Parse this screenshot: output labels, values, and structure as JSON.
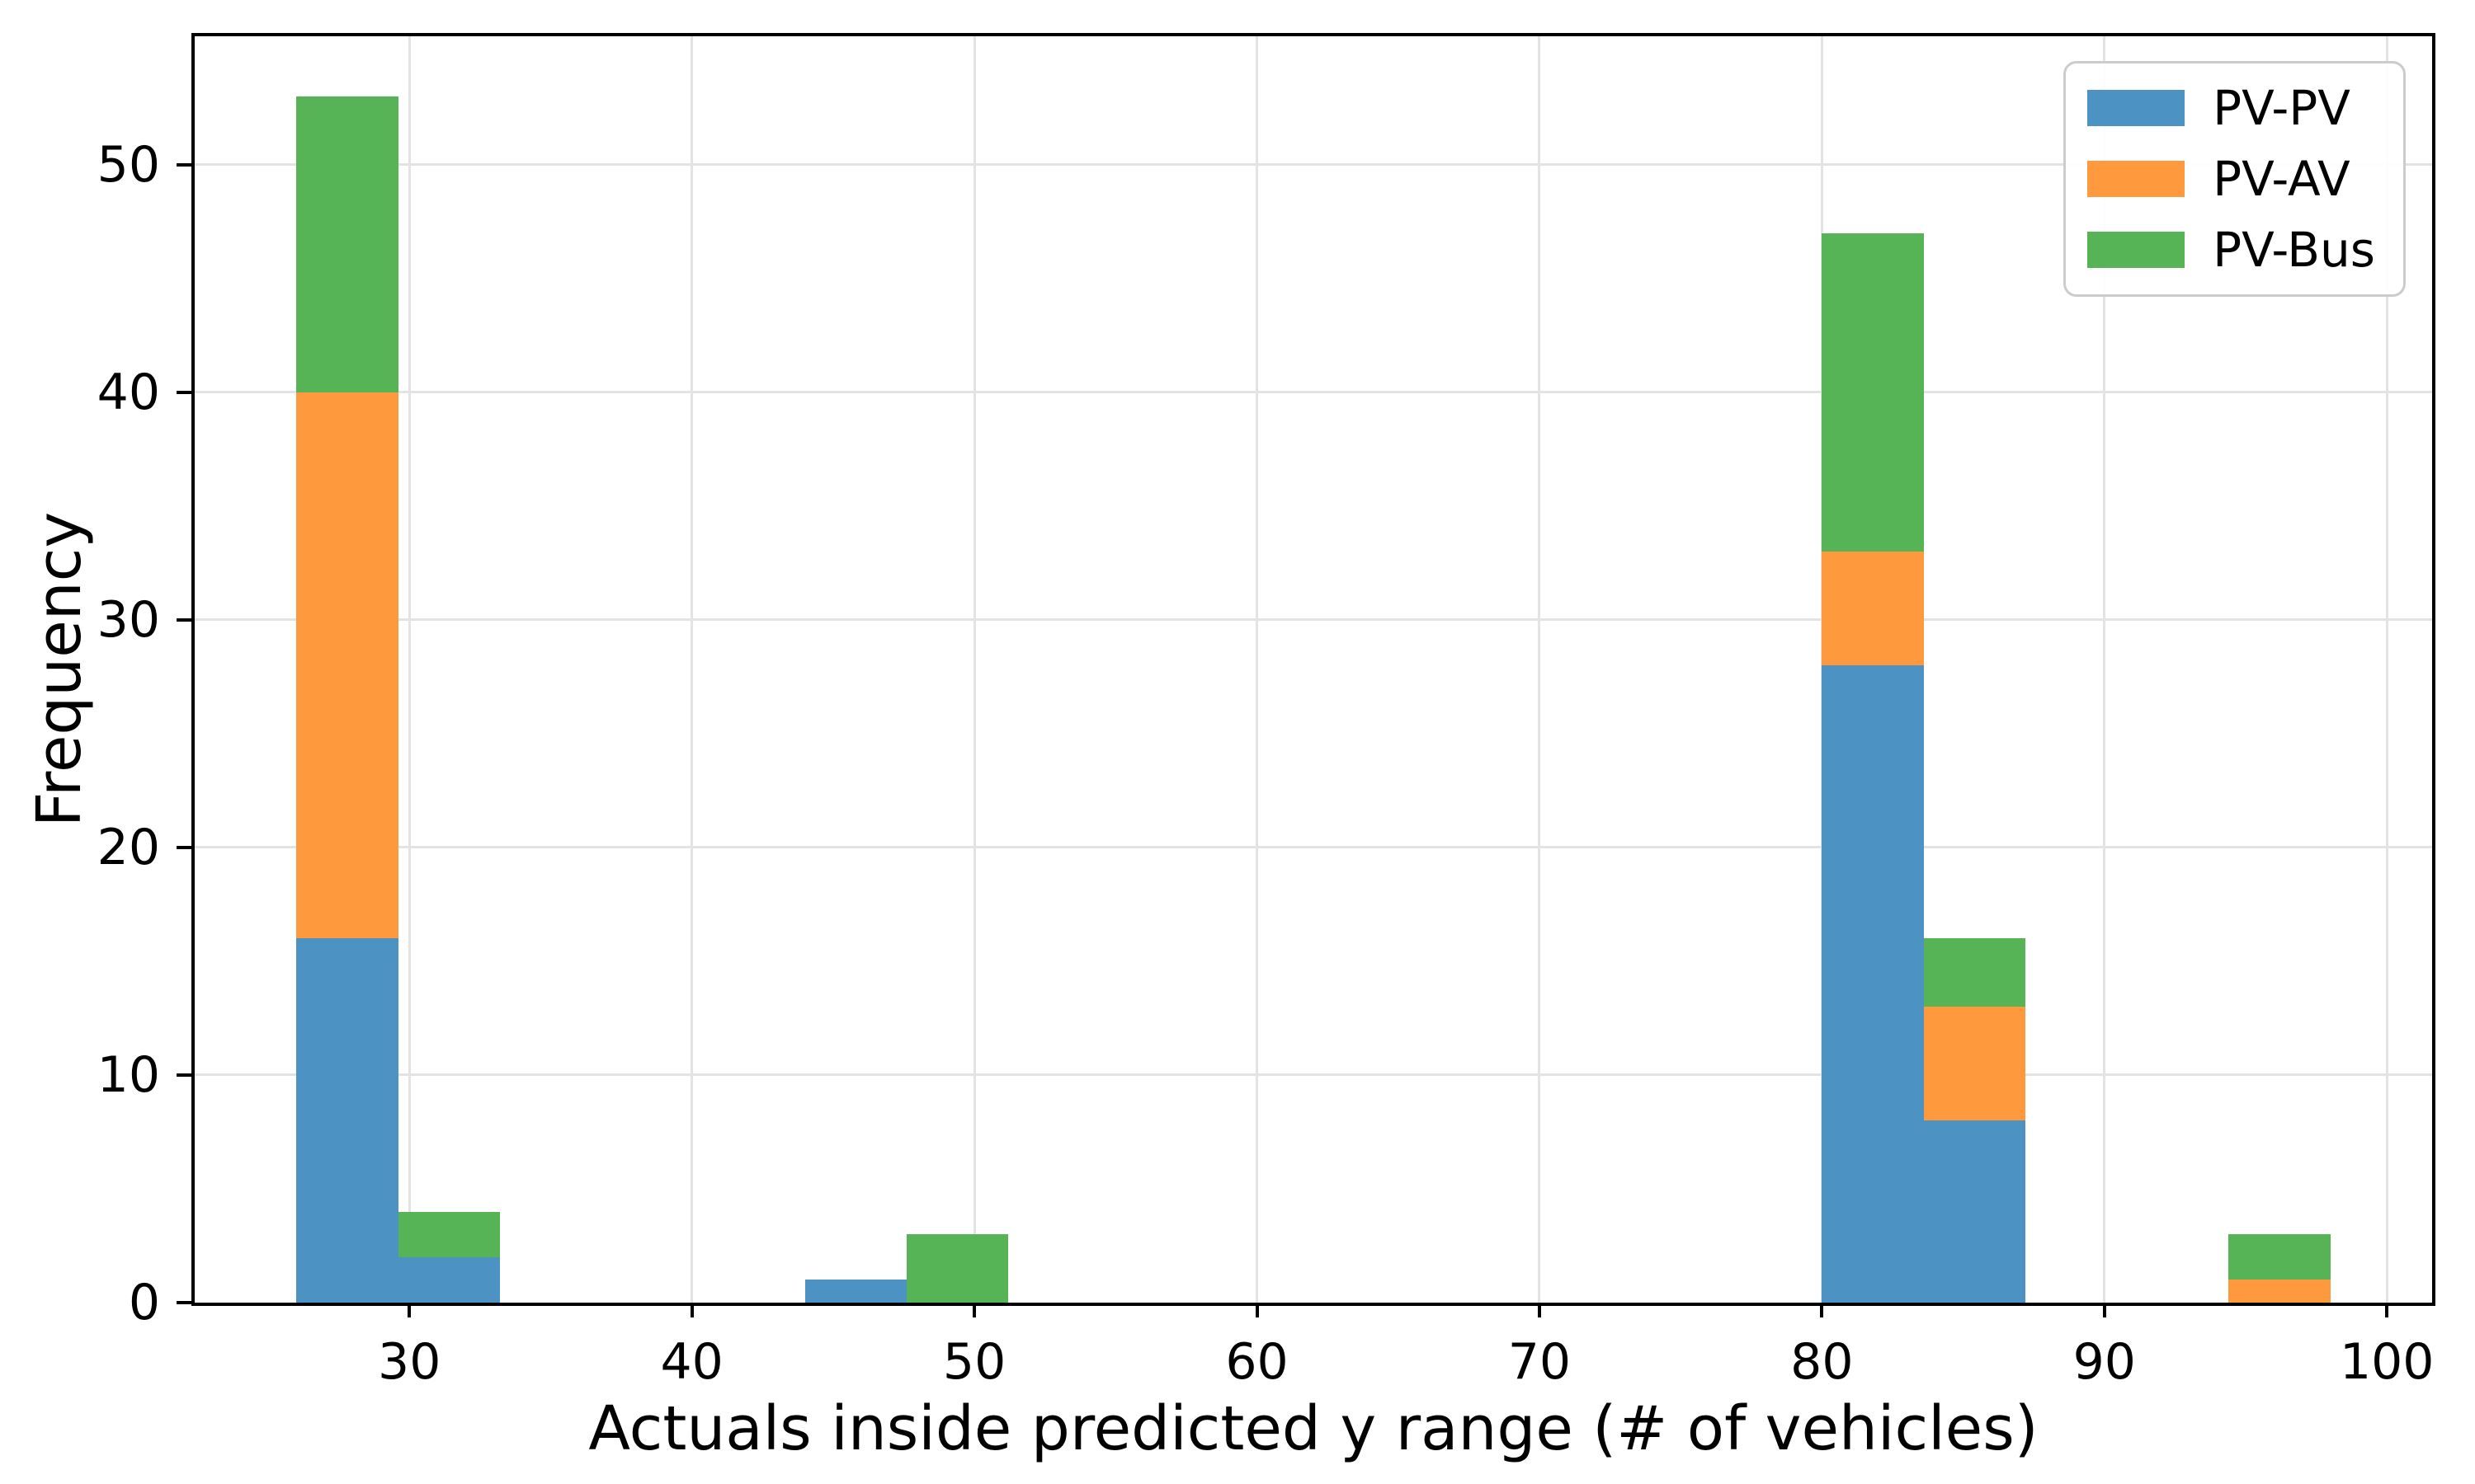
{
  "chart_data": {
    "type": "bar",
    "subtype": "stacked-histogram",
    "title": "",
    "xlabel": "Actuals inside predicted y range (# of vehicles)",
    "ylabel": "Frequency",
    "xlim": [
      22.4,
      101.6
    ],
    "ylim": [
      0,
      55.65
    ],
    "xticks": [
      30,
      40,
      50,
      60,
      70,
      80,
      90,
      100
    ],
    "yticks": [
      0,
      10,
      20,
      30,
      40,
      50
    ],
    "grid": true,
    "bin_width": 3.6,
    "series_order": [
      "PV-PV",
      "PV-AV",
      "PV-Bus"
    ],
    "series_colors": {
      "PV-PV": "#4C92C3",
      "PV-AV": "#FF993E",
      "PV-Bus": "#56B356"
    },
    "bins": [
      {
        "x0": 26.0,
        "x1": 29.6,
        "PV-PV": 16,
        "PV-AV": 24,
        "PV-Bus": 13
      },
      {
        "x0": 29.6,
        "x1": 33.2,
        "PV-PV": 2,
        "PV-AV": 0,
        "PV-Bus": 2
      },
      {
        "x0": 44.0,
        "x1": 47.6,
        "PV-PV": 1,
        "PV-AV": 0,
        "PV-Bus": 0
      },
      {
        "x0": 47.6,
        "x1": 51.2,
        "PV-PV": 0,
        "PV-AV": 0,
        "PV-Bus": 3
      },
      {
        "x0": 80.0,
        "x1": 83.6,
        "PV-PV": 28,
        "PV-AV": 5,
        "PV-Bus": 14
      },
      {
        "x0": 83.6,
        "x1": 87.2,
        "PV-PV": 8,
        "PV-AV": 5,
        "PV-Bus": 3
      },
      {
        "x0": 94.4,
        "x1": 98.0,
        "PV-PV": 0,
        "PV-AV": 1,
        "PV-Bus": 2
      }
    ],
    "legend": {
      "position": "top-right",
      "entries": [
        "PV-PV",
        "PV-AV",
        "PV-Bus"
      ]
    }
  }
}
